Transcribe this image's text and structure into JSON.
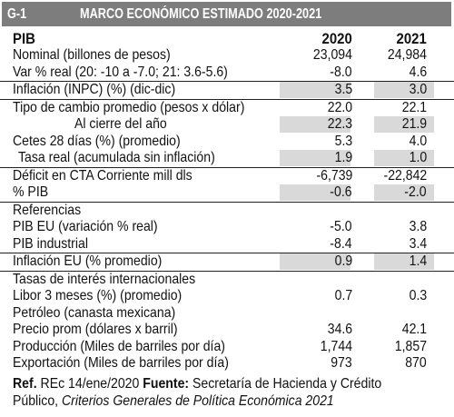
{
  "banner": {
    "code": "G-1",
    "title": "MARCO ECONÓMICO ESTIMADO 2020-2021"
  },
  "header": {
    "label": "PIB",
    "col1": "2020",
    "col2": "2021"
  },
  "rows": [
    {
      "label": "Nominal (billones de pesos)",
      "v1": "23,094",
      "v2": "24,984"
    },
    {
      "label": "Var % real (20: -10 a -7.0; 21: 3.6-5.6)",
      "v1": "-8.0",
      "v2": "4.6"
    },
    {
      "label": "Inflación (INPC) (%) (dic-dic)",
      "v1": "3.5",
      "v2": "3.0"
    },
    {
      "label": "Tipo de cambio promedio (pesos x dólar)",
      "v1": "22.0",
      "v2": "22.1"
    },
    {
      "label": "Al cierre del año",
      "v1": "22.3",
      "v2": "21.9"
    },
    {
      "label": "Cetes 28 días (%) (promedio)",
      "v1": "5.3",
      "v2": "4.0"
    },
    {
      "label": "Tasa real (acumulada sin inflación)",
      "v1": "1.9",
      "v2": "1.0"
    },
    {
      "label": "Déficit en CTA Corriente mill dls",
      "v1": "-6,739",
      "v2": "-22,842"
    },
    {
      "label": "% PIB",
      "v1": "-0.6",
      "v2": "-2.0"
    },
    {
      "label": "Referencias",
      "v1": "",
      "v2": ""
    },
    {
      "label": "PIB EU (variación % real)",
      "v1": "-5.0",
      "v2": "3.8"
    },
    {
      "label": "PIB industrial",
      "v1": "-8.4",
      "v2": "3.4"
    },
    {
      "label": "Inflación EU (% promedio)",
      "v1": "0.9",
      "v2": "1.4"
    },
    {
      "label": "Tasas de interés internacionales",
      "v1": "",
      "v2": ""
    },
    {
      "label": "Libor 3 meses (%) (promedio)",
      "v1": "0.7",
      "v2": "0.3"
    },
    {
      "label": "Petróleo (canasta mexicana)",
      "v1": "",
      "v2": ""
    },
    {
      "label": "Precio prom (dólares x barril)",
      "v1": "34.6",
      "v2": "42.1"
    },
    {
      "label": "Producción (Miles de barriles por día)",
      "v1": "1,744",
      "v2": "1,857"
    },
    {
      "label": "Exportación (Miles de barriles por día)",
      "v1": "973",
      "v2": "870"
    }
  ],
  "footnote": {
    "ref_label": "Ref.",
    "ref_text": "REc 14/ene/2020",
    "source_label": "Fuente:",
    "source_text": "Secretaría de Hacienda y Crédito",
    "line2": "Público,",
    "publication": "Criterios Generales de Política Económica 2021"
  },
  "colors": {
    "banner": "#7d7d7d",
    "shade": "#d9d9d9",
    "text": "#111111"
  }
}
